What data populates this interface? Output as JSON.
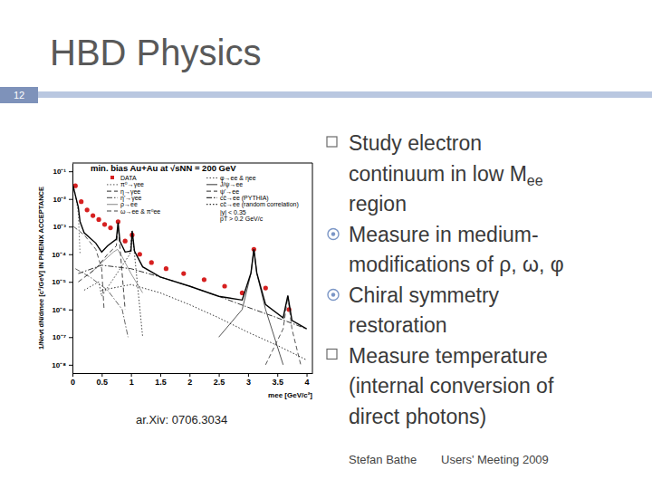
{
  "slide": {
    "title": "HBD Physics",
    "number": 12,
    "bullets": [
      {
        "marker": "square",
        "lines": [
          [
            "Study electron"
          ],
          [
            "continuum in low M",
            {
              "sub": "ee"
            }
          ],
          [
            "region"
          ]
        ]
      },
      {
        "marker": "circle",
        "lines": [
          [
            "Measure in medium-"
          ],
          [
            "modifications of ρ, ω, φ"
          ]
        ]
      },
      {
        "marker": "circle",
        "lines": [
          [
            "Chiral symmetry"
          ],
          [
            "restoration"
          ]
        ]
      },
      {
        "marker": "square",
        "lines": [
          [
            "Measure temperature"
          ],
          [
            "(internal conversion of"
          ],
          [
            "direct photons)"
          ]
        ]
      }
    ],
    "footer": [
      "Stefan Bathe",
      "Users' Meeting 2009"
    ],
    "source": "ar.Xiv: 0706.3034"
  },
  "chart_data": {
    "type": "line",
    "title": "min. bias Au+Au at √sNN = 200 GeV",
    "x_label": "mee [GeV/c²]",
    "y_label": "1/Nevt dN/dmee [c²/GeV] IN PHENIX ACCEPTANCE",
    "annotations": [
      "|y| < 0.35",
      "pT > 0.2 GeV/c"
    ],
    "log": "y",
    "grid": false,
    "legend": "top",
    "xlim": [
      0,
      4.1
    ],
    "xticks": [
      0,
      0.5,
      1,
      1.5,
      2,
      2.5,
      3,
      3.5,
      4
    ],
    "ylim": [
      5e-09,
      0.2
    ],
    "yticks": [
      {
        "value": 1e-08,
        "label": "10⁻⁸"
      },
      {
        "value": 1e-07,
        "label": "10⁻⁷"
      },
      {
        "value": 1e-06,
        "label": "10⁻⁶"
      },
      {
        "value": 1e-05,
        "label": "10⁻⁵"
      },
      {
        "value": 0.0001,
        "label": "10⁻⁴"
      },
      {
        "value": 0.001,
        "label": "10⁻³"
      },
      {
        "value": 0.01,
        "label": "10⁻²"
      },
      {
        "value": 0.1,
        "label": "10⁻¹"
      }
    ],
    "series": [
      {
        "name": "DATA",
        "type": "scatter",
        "marker": "circle",
        "color": "#d62020",
        "x": [
          0.05,
          0.15,
          0.25,
          0.35,
          0.45,
          0.55,
          0.65,
          0.78,
          0.9,
          1.02,
          1.15,
          1.35,
          1.6,
          1.9,
          2.25,
          2.6,
          2.9,
          3.1,
          3.3,
          3.7
        ],
        "values": [
          0.03,
          0.008,
          0.004,
          0.0025,
          0.0018,
          0.0012,
          0.0009,
          0.0015,
          0.0003,
          0.0005,
          0.0001,
          5e-05,
          3e-05,
          2e-05,
          1.2e-05,
          7e-06,
          4e-06,
          0.00015,
          6e-06,
          1e-06
        ]
      },
      {
        "name": "π⁰→γee",
        "type": "line",
        "line_style": "dotted",
        "color": "#777777",
        "x": [
          0.01,
          0.05,
          0.1,
          0.13
        ],
        "values": [
          0.03,
          0.015,
          0.003,
          0.0001
        ]
      },
      {
        "name": "η→γee",
        "type": "line",
        "line_style": "dashed",
        "color": "#555555",
        "x": [
          0.02,
          0.2,
          0.4,
          0.5,
          0.54
        ],
        "values": [
          0.001,
          0.0005,
          0.00015,
          3e-05,
          1e-06
        ]
      },
      {
        "name": "η'→γee",
        "type": "line",
        "line_style": "dashdot",
        "color": "#666666",
        "x": [
          0.05,
          0.3,
          0.6,
          0.85,
          0.95
        ],
        "values": [
          3e-05,
          1.5e-05,
          5e-06,
          1e-06,
          1e-07
        ]
      },
      {
        "name": "ρ→ee",
        "type": "line",
        "line_style": "solid",
        "color": "#999999",
        "x": [
          0.3,
          0.5,
          0.7,
          0.77,
          0.85,
          1.0,
          1.2
        ],
        "values": [
          2e-05,
          5e-05,
          0.00012,
          0.00015,
          8e-05,
          2e-05,
          4e-06
        ]
      },
      {
        "name": "ω→ee & π⁰ee",
        "type": "line",
        "line_style": "dashed",
        "color": "#444444",
        "x": [
          0.1,
          0.4,
          0.6,
          0.75,
          0.78,
          0.81,
          0.9
        ],
        "values": [
          1e-05,
          3e-05,
          0.0001,
          0.0002,
          0.0012,
          0.0002,
          1e-06
        ]
      },
      {
        "name": "φ→ee & ηee",
        "type": "line",
        "line_style": "dotted",
        "color": "#444444",
        "x": [
          0.2,
          0.45,
          0.5,
          0.98,
          1.02,
          1.06,
          1.2
        ],
        "values": [
          5e-06,
          1e-05,
          3e-06,
          0.0001,
          0.0006,
          0.0001,
          1e-07
        ]
      },
      {
        "name": "J/ψ→ee",
        "type": "line",
        "line_style": "solid",
        "color": "#555555",
        "x": [
          2.5,
          2.9,
          3.05,
          3.1,
          3.15,
          3.3,
          3.6
        ],
        "values": [
          1e-07,
          1e-06,
          2e-05,
          0.00015,
          2e-05,
          1e-06,
          1e-08
        ]
      },
      {
        "name": "ψ'→ee",
        "type": "line",
        "line_style": "dashed",
        "color": "#555555",
        "x": [
          3.3,
          3.6,
          3.68,
          3.75,
          3.9
        ],
        "values": [
          1e-08,
          2e-07,
          3e-06,
          2e-07,
          1e-08
        ]
      },
      {
        "name": "cc̄→ee (PYTHIA)",
        "type": "line",
        "line_style": "dashdot",
        "color": "#333333",
        "x": [
          0.1,
          0.5,
          1,
          1.5,
          2,
          2.5,
          3,
          3.5,
          4
        ],
        "values": [
          2e-05,
          4e-05,
          3e-05,
          1.5e-05,
          7e-06,
          3e-06,
          1.2e-06,
          5e-07,
          2e-07
        ]
      },
      {
        "name": "cc̄→ee (random correlation)",
        "type": "line",
        "line_style": "dotted",
        "color": "#333333",
        "x": [
          0.5,
          1,
          1.5,
          2,
          2.5,
          3,
          3.5,
          4
        ],
        "values": [
          5e-06,
          8e-06,
          4e-06,
          1.5e-06,
          5e-07,
          1.5e-07,
          5e-08,
          1.5e-08
        ]
      },
      {
        "type": "line",
        "line_style": "solid",
        "color": "#000000",
        "x": [
          0.01,
          0.1,
          0.13,
          0.2,
          0.4,
          0.5,
          0.6,
          0.75,
          0.78,
          0.81,
          0.9,
          1.0,
          1.02,
          1.06,
          1.2,
          1.5,
          2,
          2.5,
          2.9,
          3.05,
          3.1,
          3.15,
          3.3,
          3.6,
          3.68,
          3.75,
          4
        ],
        "values": [
          0.03,
          0.005,
          0.0015,
          0.0006,
          0.00025,
          0.00012,
          0.0002,
          0.00035,
          0.0014,
          0.0003,
          0.00012,
          0.00013,
          0.0007,
          0.00013,
          3.5e-05,
          1.5e-05,
          7e-06,
          3e-06,
          2.2e-06,
          2.1e-05,
          0.00015,
          2.1e-05,
          1.5e-06,
          5e-07,
          3.2e-06,
          4e-07,
          2e-07
        ]
      }
    ]
  }
}
